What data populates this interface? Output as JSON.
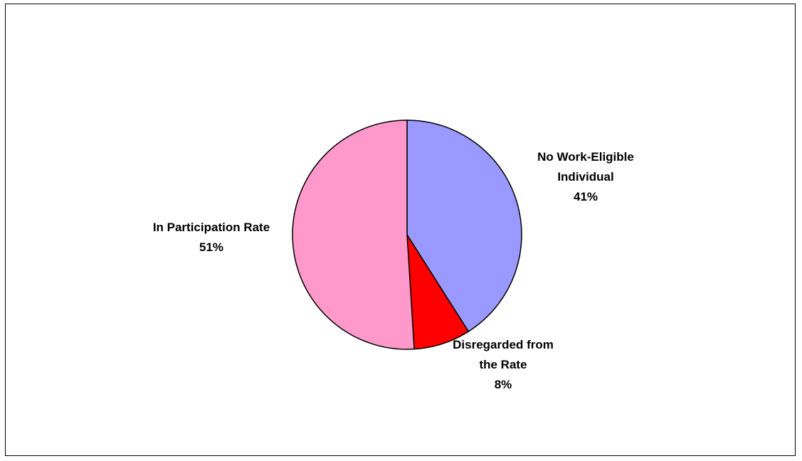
{
  "chart_data": {
    "type": "pie",
    "title": "",
    "slices": [
      {
        "label_lines": [
          "No Work-Eligible",
          "Individual"
        ],
        "value": 41,
        "value_label": "41%",
        "color": "#9999ff"
      },
      {
        "label_lines": [
          "Disregarded from",
          "the Rate"
        ],
        "value": 8,
        "value_label": "8%",
        "color": "#ff0000"
      },
      {
        "label_lines": [
          "In Participation Rate"
        ],
        "value": 51,
        "value_label": "51%",
        "color": "#ff99cc"
      }
    ],
    "start": "12 o'clock",
    "direction": "clockwise"
  }
}
